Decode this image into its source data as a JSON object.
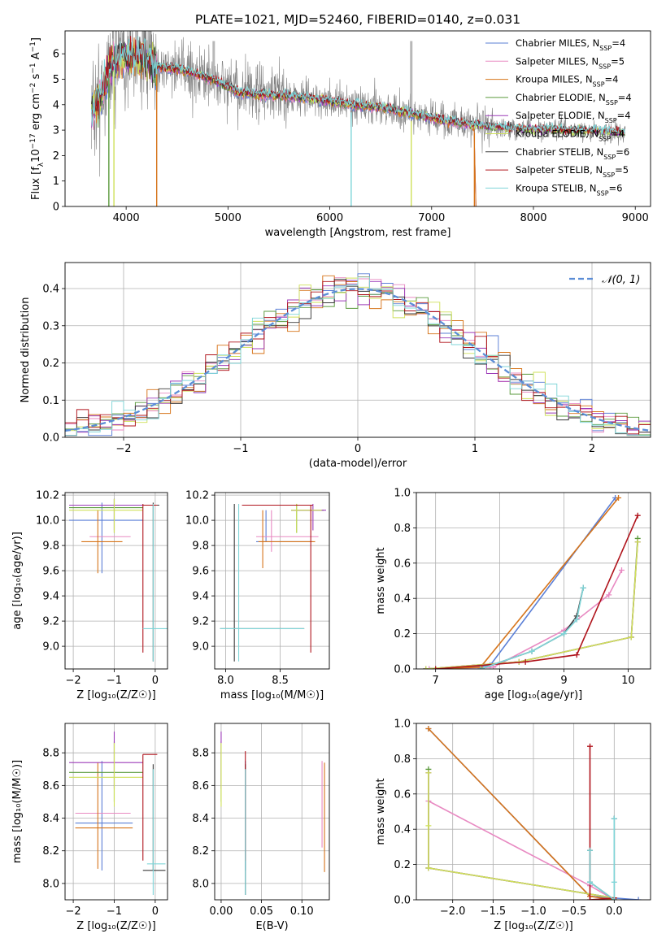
{
  "figure_title": "PLATE=1021, MJD=52460, FIBERID=0140, z=0.031",
  "colors": {
    "Chabrier MILES": "#5b7fd6",
    "Salpeter MILES": "#e88ac2",
    "Kroupa MILES": "#d6741a",
    "Chabrier ELODIE": "#5a9a3c",
    "Salpeter ELODIE": "#9c3bb8",
    "Kroupa ELODIE": "#cfe05a",
    "Chabrier STELIB": "#3a3a3a",
    "Salpeter STELIB": "#b0141c",
    "Kroupa STELIB": "#7fd5d8",
    "data": "#808080",
    "normal": "#5b8dd6"
  },
  "chart_data": [
    {
      "type": "line",
      "title": "PLATE=1021, MJD=52460, FIBERID=0140, z=0.031",
      "xlabel": "wavelength [Angstrom, rest frame]",
      "ylabel": "Flux [f_λ 10^-17 erg cm^-2 s^-1 A^-1]",
      "xlim": [
        3400,
        9150
      ],
      "ylim": [
        0,
        6.9
      ],
      "xticks": [
        "4000",
        "5000",
        "6000",
        "7000",
        "8000",
        "9000"
      ],
      "yticks": [
        "0",
        "1",
        "2",
        "3",
        "4",
        "5",
        "6"
      ],
      "legend": [
        {
          "label": "Chabrier MILES, N",
          "sub": "SSP",
          "n": "=4"
        },
        {
          "label": "Salpeter MILES, N",
          "sub": "SSP",
          "n": "=5"
        },
        {
          "label": "Kroupa MILES, N",
          "sub": "SSP",
          "n": "=4"
        },
        {
          "label": "Chabrier ELODIE, N",
          "sub": "SSP",
          "n": "=4"
        },
        {
          "label": "Salpeter ELODIE, N",
          "sub": "SSP",
          "n": "=4"
        },
        {
          "label": "Kroupa ELODIE, N",
          "sub": "SSP",
          "n": "=4"
        },
        {
          "label": "Chabrier STELIB, N",
          "sub": "SSP",
          "n": "=6"
        },
        {
          "label": "Salpeter STELIB, N",
          "sub": "SSP",
          "n": "=5"
        },
        {
          "label": "Kroupa STELIB, N",
          "sub": "SSP",
          "n": "=6"
        }
      ],
      "continuum": [
        [
          3650,
          3.8
        ],
        [
          3750,
          4.3
        ],
        [
          3850,
          5.6
        ],
        [
          3950,
          5.8
        ],
        [
          4050,
          5.9
        ],
        [
          4150,
          5.9
        ],
        [
          4300,
          5.5
        ],
        [
          4500,
          5.4
        ],
        [
          4700,
          5.2
        ],
        [
          4900,
          4.9
        ],
        [
          5100,
          4.5
        ],
        [
          5300,
          4.4
        ],
        [
          5600,
          4.35
        ],
        [
          5900,
          4.2
        ],
        [
          6200,
          4.0
        ],
        [
          6500,
          3.9
        ],
        [
          6800,
          3.65
        ],
        [
          7100,
          3.4
        ],
        [
          7400,
          3.2
        ],
        [
          7800,
          3.05
        ],
        [
          8200,
          3.0
        ],
        [
          8600,
          2.95
        ],
        [
          8900,
          2.9
        ]
      ],
      "model_dropouts": [
        [
          3830,
          "Chabrier ELODIE"
        ],
        [
          3880,
          "Kroupa ELODIE"
        ],
        [
          4300,
          "Kroupa MILES"
        ],
        [
          6210,
          "Kroupa STELIB"
        ],
        [
          6800,
          "Kroupa ELODIE"
        ],
        [
          7420,
          "Kroupa MILES"
        ]
      ],
      "model_end_miles": 7420
    },
    {
      "type": "step-histogram",
      "xlabel": "(data-model)/error",
      "ylabel": "Normed distribution",
      "xlim": [
        -2.5,
        2.5
      ],
      "ylim": [
        0,
        0.47
      ],
      "xticks": [
        "−2",
        "−1",
        "0",
        "1",
        "2"
      ],
      "yticks": [
        "0.0",
        "0.1",
        "0.2",
        "0.3",
        "0.4"
      ],
      "bins": 50,
      "legend": "𝒩(0, 1)",
      "normal_mu": 0,
      "normal_sigma": 1
    },
    {
      "type": "errorbar",
      "xlabel": "Z [log₁₀(Z/Z☉)]",
      "ylabel": "age  [log₁₀(age/yr)]",
      "xlim": [
        -2.2,
        0.3
      ],
      "ylim": [
        8.82,
        10.22
      ],
      "xticks": [
        "−2",
        "−1",
        "0"
      ],
      "yticks": [
        "9.0",
        "9.2",
        "9.4",
        "9.6",
        "9.8",
        "10.0",
        "10.2"
      ],
      "points": [
        {
          "model": "Chabrier MILES",
          "x": -1.3,
          "y": 10.0,
          "xlo": -2.1,
          "xhi": -0.3,
          "ylo": 9.58,
          "yhi": 10.14
        },
        {
          "model": "Salpeter MILES",
          "x": -1.0,
          "y": 9.87,
          "xlo": -1.6,
          "xhi": -0.6,
          "ylo": 9.87,
          "yhi": 9.87
        },
        {
          "model": "Kroupa MILES",
          "x": -1.4,
          "y": 9.83,
          "xlo": -1.8,
          "xhi": -0.8,
          "ylo": 9.58,
          "yhi": 10.08
        },
        {
          "model": "Chabrier ELODIE",
          "x": -1.0,
          "y": 10.1,
          "xlo": -2.1,
          "xhi": -0.3,
          "ylo": 9.9,
          "yhi": 10.17
        },
        {
          "model": "Salpeter ELODIE",
          "x": -1.0,
          "y": 10.12,
          "xlo": -2.1,
          "xhi": -0.3,
          "ylo": 9.92,
          "yhi": 10.17
        },
        {
          "model": "Kroupa ELODIE",
          "x": -1.0,
          "y": 10.08,
          "xlo": -2.1,
          "xhi": -0.3,
          "ylo": 9.9,
          "yhi": 10.17
        },
        {
          "model": "Chabrier STELIB",
          "x": -0.05,
          "y": 10.12,
          "xlo": -0.3,
          "xhi": 0.1,
          "ylo": 8.88,
          "yhi": 10.14
        },
        {
          "model": "Salpeter STELIB",
          "x": -0.3,
          "y": 10.12,
          "xlo": -0.3,
          "xhi": 0.05,
          "ylo": 8.95,
          "yhi": 10.13
        },
        {
          "model": "Kroupa STELIB",
          "x": -0.05,
          "y": 9.14,
          "xlo": -0.3,
          "xhi": 0.3,
          "ylo": 8.88,
          "yhi": 10.13
        }
      ]
    },
    {
      "type": "errorbar",
      "xlabel": "mass [log₁₀(M/M☉)]",
      "ylabel": "",
      "xlim": [
        7.9,
        8.95
      ],
      "ylim": [
        8.82,
        10.22
      ],
      "xticks": [
        "8.0",
        "8.5"
      ],
      "yticks": [
        "9.0",
        "9.2",
        "9.4",
        "9.6",
        "9.8",
        "10.0",
        "10.2"
      ],
      "points": [
        {
          "model": "Chabrier MILES",
          "x": 8.37,
          "y": 9.83,
          "xlo": 8.28,
          "xhi": 8.8,
          "ylo": 9.83,
          "yhi": 10.08
        },
        {
          "model": "Salpeter MILES",
          "x": 8.42,
          "y": 9.87,
          "xlo": 8.28,
          "xhi": 8.85,
          "ylo": 9.75,
          "yhi": 10.08
        },
        {
          "model": "Kroupa MILES",
          "x": 8.34,
          "y": 9.83,
          "xlo": 8.3,
          "xhi": 8.82,
          "ylo": 9.62,
          "yhi": 10.08
        },
        {
          "model": "Chabrier ELODIE",
          "x": 8.65,
          "y": 10.08,
          "xlo": 8.6,
          "xhi": 8.9,
          "ylo": 9.9,
          "yhi": 10.13
        },
        {
          "model": "Salpeter ELODIE",
          "x": 8.8,
          "y": 10.08,
          "xlo": 8.6,
          "xhi": 8.92,
          "ylo": 9.92,
          "yhi": 10.13
        },
        {
          "model": "Kroupa ELODIE",
          "x": 8.65,
          "y": 10.08,
          "xlo": 8.6,
          "xhi": 8.88,
          "ylo": 9.9,
          "yhi": 10.13
        },
        {
          "model": "Chabrier STELIB",
          "x": 8.08,
          "y": 9.14,
          "xlo": 7.95,
          "xhi": 8.72,
          "ylo": 8.88,
          "yhi": 10.13
        },
        {
          "model": "Salpeter STELIB",
          "x": 8.78,
          "y": 10.12,
          "xlo": 8.15,
          "xhi": 8.8,
          "ylo": 8.95,
          "yhi": 10.12
        },
        {
          "model": "Kroupa STELIB",
          "x": 8.12,
          "y": 9.14,
          "xlo": 7.95,
          "xhi": 8.72,
          "ylo": 8.88,
          "yhi": 10.13
        }
      ]
    },
    {
      "type": "line",
      "xlabel": "age  [log₁₀(age/yr)]",
      "ylabel": "mass weight",
      "xlim": [
        6.7,
        10.35
      ],
      "ylim": [
        0,
        1
      ],
      "xticks": [
        "7",
        "8",
        "9",
        "10"
      ],
      "yticks": [
        "0.0",
        "0.2",
        "0.4",
        "0.6",
        "0.8",
        "1.0"
      ],
      "series": [
        {
          "model": "Chabrier MILES",
          "x": [
            6.85,
            7.85,
            9.8
          ],
          "y": [
            0.0,
            0.02,
            0.97
          ]
        },
        {
          "model": "Salpeter MILES",
          "x": [
            6.9,
            7.9,
            9.0,
            9.7,
            9.9
          ],
          "y": [
            0.0,
            0.01,
            0.22,
            0.42,
            0.56
          ]
        },
        {
          "model": "Kroupa MILES",
          "x": [
            6.85,
            7.7,
            9.85
          ],
          "y": [
            0.0,
            0.01,
            0.97
          ]
        },
        {
          "model": "Chabrier ELODIE",
          "x": [
            6.85,
            8.3,
            10.05,
            10.15
          ],
          "y": [
            0.0,
            0.04,
            0.18,
            0.74
          ]
        },
        {
          "model": "Salpeter ELODIE",
          "x": [
            6.85,
            8.3,
            10.05,
            10.15
          ],
          "y": [
            0.0,
            0.04,
            0.18,
            0.72
          ]
        },
        {
          "model": "Kroupa ELODIE",
          "x": [
            6.85,
            8.3,
            10.05,
            10.15
          ],
          "y": [
            0.0,
            0.04,
            0.18,
            0.72
          ]
        },
        {
          "model": "Chabrier STELIB",
          "x": [
            7.7,
            8.5,
            9.0,
            9.2,
            9.3
          ],
          "y": [
            0.0,
            0.1,
            0.2,
            0.3,
            0.46
          ]
        },
        {
          "model": "Salpeter STELIB",
          "x": [
            7.0,
            8.4,
            9.2,
            10.15
          ],
          "y": [
            0.0,
            0.04,
            0.08,
            0.87
          ]
        },
        {
          "model": "Kroupa STELIB",
          "x": [
            7.7,
            8.5,
            9.0,
            9.2,
            9.3
          ],
          "y": [
            0.0,
            0.1,
            0.2,
            0.28,
            0.46
          ]
        }
      ]
    },
    {
      "type": "errorbar",
      "xlabel": "Z [log₁₀(Z/Z☉)]",
      "ylabel": "mass [log₁₀(M/M☉)]",
      "xlim": [
        -2.2,
        0.3
      ],
      "ylim": [
        7.9,
        8.98
      ],
      "xticks": [
        "−2",
        "−1",
        "0"
      ],
      "yticks": [
        "8.0",
        "8.2",
        "8.4",
        "8.6",
        "8.8"
      ],
      "points": [
        {
          "model": "Chabrier MILES",
          "x": -1.3,
          "y": 8.37,
          "xlo": -1.95,
          "xhi": -0.55,
          "ylo": 8.08,
          "yhi": 8.75
        },
        {
          "model": "Salpeter MILES",
          "x": -1.0,
          "y": 8.43,
          "xlo": -1.95,
          "xhi": -0.6,
          "ylo": 8.43,
          "yhi": 8.43
        },
        {
          "model": "Kroupa MILES",
          "x": -1.4,
          "y": 8.34,
          "xlo": -1.95,
          "xhi": -0.55,
          "ylo": 8.09,
          "yhi": 8.74
        },
        {
          "model": "Chabrier ELODIE",
          "x": -1.0,
          "y": 8.68,
          "xlo": -2.1,
          "xhi": -0.3,
          "ylo": 8.5,
          "yhi": 8.87
        },
        {
          "model": "Salpeter ELODIE",
          "x": -1.0,
          "y": 8.74,
          "xlo": -2.1,
          "xhi": -0.3,
          "ylo": 8.58,
          "yhi": 8.93
        },
        {
          "model": "Kroupa ELODIE",
          "x": -1.0,
          "y": 8.65,
          "xlo": -2.1,
          "xhi": -0.3,
          "ylo": 8.47,
          "yhi": 8.86
        },
        {
          "model": "Chabrier STELIB",
          "x": -0.05,
          "y": 8.08,
          "xlo": -0.3,
          "xhi": 0.25,
          "ylo": 8.08,
          "yhi": 8.73
        },
        {
          "model": "Salpeter STELIB",
          "x": -0.3,
          "y": 8.79,
          "xlo": -0.3,
          "xhi": 0.05,
          "ylo": 8.14,
          "yhi": 8.79
        },
        {
          "model": "Kroupa STELIB",
          "x": -0.05,
          "y": 8.12,
          "xlo": -0.2,
          "xhi": 0.25,
          "ylo": 7.93,
          "yhi": 8.7
        }
      ]
    },
    {
      "type": "errorbar",
      "xlabel": "E(B-V)",
      "ylabel": "",
      "xlim": [
        -0.008,
        0.134
      ],
      "ylim": [
        7.9,
        8.98
      ],
      "xticks": [
        "0.00",
        "0.05",
        "0.10"
      ],
      "yticks": [
        "8.0",
        "8.2",
        "8.4",
        "8.6",
        "8.8"
      ],
      "points": [
        {
          "model": "Chabrier MILES",
          "x": 0.03,
          "y": 8.37,
          "ylo": 8.08,
          "yhi": 8.75
        },
        {
          "model": "Salpeter MILES",
          "x": 0.125,
          "y": 8.43,
          "ylo": 8.22,
          "yhi": 8.75
        },
        {
          "model": "Kroupa MILES",
          "x": 0.128,
          "y": 8.34,
          "ylo": 8.07,
          "yhi": 8.74
        },
        {
          "model": "Chabrier ELODIE",
          "x": 0.0,
          "y": 8.68,
          "ylo": 8.5,
          "yhi": 8.87
        },
        {
          "model": "Salpeter ELODIE",
          "x": 0.0,
          "y": 8.74,
          "ylo": 8.58,
          "yhi": 8.93
        },
        {
          "model": "Kroupa ELODIE",
          "x": 0.0,
          "y": 8.65,
          "ylo": 8.47,
          "yhi": 8.86
        },
        {
          "model": "Chabrier STELIB",
          "x": 0.03,
          "y": 8.08,
          "ylo": 7.93,
          "yhi": 8.73
        },
        {
          "model": "Salpeter STELIB",
          "x": 0.03,
          "y": 8.79,
          "ylo": 8.14,
          "yhi": 8.81
        },
        {
          "model": "Kroupa STELIB",
          "x": 0.03,
          "y": 8.12,
          "ylo": 7.93,
          "yhi": 8.7
        }
      ]
    },
    {
      "type": "line",
      "xlabel": "Z [log₁₀(Z/Z☉)]",
      "ylabel": "mass weight",
      "xlim": [
        -2.45,
        0.45
      ],
      "ylim": [
        0,
        1
      ],
      "xticks": [
        "−2.0",
        "−1.5",
        "−1.0",
        "−0.5",
        "0.0"
      ],
      "yticks": [
        "0.0",
        "0.2",
        "0.4",
        "0.6",
        "0.8",
        "1.0"
      ],
      "series": [
        {
          "model": "Chabrier MILES",
          "x": [
            -2.3,
            -0.3,
            0.0,
            0.3
          ],
          "y": [
            0.97,
            0.02,
            0.01,
            0.0
          ]
        },
        {
          "model": "Salpeter MILES",
          "x": [
            -2.3,
            -0.3,
            0.0
          ],
          "y": [
            0.56,
            0.08,
            0.0
          ]
        },
        {
          "model": "Kroupa MILES",
          "x": [
            -2.3,
            -0.3,
            0.0
          ],
          "y": [
            0.97,
            0.02,
            0.0
          ]
        },
        {
          "model": "Chabrier ELODIE",
          "x": [
            -2.3,
            -2.3,
            0.0
          ],
          "y": [
            0.74,
            0.18,
            0.01
          ]
        },
        {
          "model": "Salpeter ELODIE",
          "x": [
            -2.3,
            -2.3,
            0.0
          ],
          "y": [
            0.72,
            0.18,
            0.01
          ]
        },
        {
          "model": "Kroupa ELODIE",
          "x": [
            -2.3,
            -2.3,
            -2.3,
            0.0
          ],
          "y": [
            0.72,
            0.42,
            0.18,
            0.01
          ]
        },
        {
          "model": "Chabrier STELIB",
          "x": [
            -0.3,
            -0.3,
            0.0,
            0.0
          ],
          "y": [
            0.28,
            0.1,
            0.0,
            0.46
          ]
        },
        {
          "model": "Salpeter STELIB",
          "x": [
            -0.3,
            -0.3,
            0.0
          ],
          "y": [
            0.87,
            0.0,
            0.01
          ]
        },
        {
          "model": "Kroupa STELIB",
          "x": [
            -0.3,
            -0.3,
            0.0,
            0.0,
            0.0
          ],
          "y": [
            0.28,
            0.1,
            0.0,
            0.1,
            0.46
          ]
        }
      ]
    }
  ]
}
